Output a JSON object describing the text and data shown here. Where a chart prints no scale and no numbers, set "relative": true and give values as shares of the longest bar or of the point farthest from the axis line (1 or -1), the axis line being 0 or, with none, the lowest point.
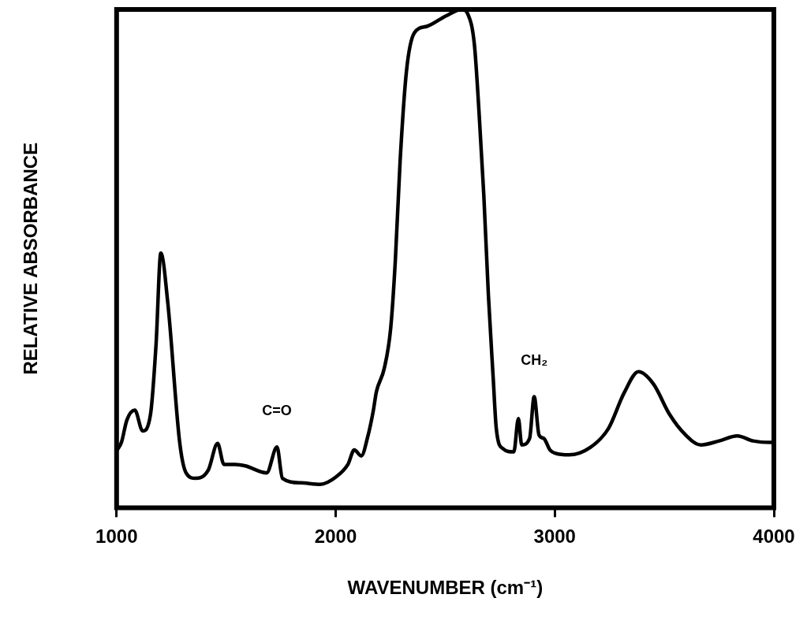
{
  "chart_data": {
    "type": "line",
    "xlabel": "WAVENUMBER (cm⁻¹)",
    "ylabel": "RELATIVE ABSORBANCE",
    "relative": true,
    "xlim": [
      1000,
      4000
    ],
    "xticks": [
      1000,
      2000,
      3000,
      4000
    ],
    "grid": false,
    "legend": false,
    "marker": "none",
    "line_style": "solid",
    "annotations": [
      {
        "text": "C=O",
        "x": 1732,
        "y": 0.122
      },
      {
        "text": "CH₂",
        "x": 2906,
        "y": 0.223
      }
    ],
    "series": [
      {
        "color": "#000000",
        "x": [
          1000,
          1022,
          1047,
          1083,
          1119,
          1155,
          1180,
          1202,
          1234,
          1288,
          1317,
          1360,
          1418,
          1461,
          1490,
          1541,
          1587,
          1685,
          1732,
          1757,
          1840,
          1930,
          2002,
          2056,
          2085,
          2117,
          2146,
          2171,
          2186,
          2222,
          2251,
          2272,
          2294,
          2323,
          2359,
          2416,
          2503,
          2575,
          2604,
          2633,
          2654,
          2676,
          2697,
          2719,
          2733,
          2762,
          2813,
          2834,
          2849,
          2885,
          2906,
          2928,
          2950,
          2978,
          3004,
          3065,
          3162,
          3245,
          3317,
          3382,
          3451,
          3523,
          3595,
          3667,
          3750,
          3833,
          3905,
          3984,
          4000
        ],
        "values": [
          0.114,
          0.131,
          0.176,
          0.196,
          0.154,
          0.188,
          0.327,
          0.511,
          0.41,
          0.131,
          0.07,
          0.059,
          0.075,
          0.129,
          0.087,
          0.087,
          0.084,
          0.07,
          0.122,
          0.059,
          0.05,
          0.047,
          0.062,
          0.087,
          0.116,
          0.104,
          0.142,
          0.193,
          0.233,
          0.28,
          0.36,
          0.494,
          0.695,
          0.876,
          0.953,
          0.966,
          0.987,
          1,
          0.99,
          0.93,
          0.796,
          0.628,
          0.427,
          0.26,
          0.159,
          0.119,
          0.112,
          0.179,
          0.126,
          0.139,
          0.223,
          0.146,
          0.139,
          0.116,
          0.109,
          0.106,
          0.121,
          0.159,
          0.231,
          0.273,
          0.248,
          0.188,
          0.147,
          0.126,
          0.134,
          0.144,
          0.134,
          0.131,
          0.131
        ]
      }
    ]
  }
}
